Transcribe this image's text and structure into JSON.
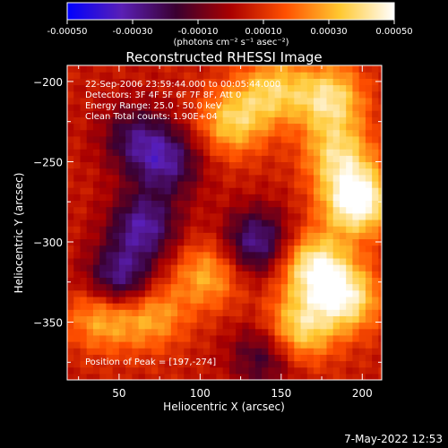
{
  "chart_data": {
    "type": "heatmap",
    "title": "Reconstructed RHESSI Image",
    "xlabel": "Heliocentric X (arcsec)",
    "ylabel": "Heliocentric Y (arcsec)",
    "xlim": [
      18,
      212
    ],
    "ylim": [
      -386,
      -190
    ],
    "x_ticks": [
      50,
      100,
      150,
      200
    ],
    "y_ticks": [
      -200,
      -250,
      -300,
      -350
    ],
    "colorbar": {
      "range": [
        -0.0005,
        0.0005
      ],
      "ticks": [
        "-0.00050",
        "-0.00030",
        "-0.00010",
        "0.00010",
        "0.00030",
        "0.00050"
      ],
      "units_label": "(photons cm⁻² s⁻¹ asec⁻²)",
      "colors": [
        "#0000ff",
        "#5a1fb5",
        "#3a0030",
        "#aa0000",
        "#ff5000",
        "#ffc830",
        "#ffffff"
      ]
    },
    "annotations": [
      "22-Sep-2006 23:59:44.000 to 00:05:44.000",
      "Detectors: 3F 4F 5F 6F 7F 8F, Att 0",
      "Energy Range: 25.0 - 50.0 keV",
      "Clean    Total counts: 1.90E+04"
    ],
    "peak_label": "Position of Peak = [197,-274]",
    "peak": [
      197,
      -274
    ],
    "bright_regions": [
      {
        "x": 197,
        "y": -274,
        "value": 0.0005
      },
      {
        "x": 180,
        "y": -210,
        "value": 0.00035
      },
      {
        "x": 170,
        "y": -315,
        "value": 0.0004
      },
      {
        "x": 190,
        "y": -335,
        "value": 0.00038
      },
      {
        "x": 160,
        "y": -355,
        "value": 0.00035
      },
      {
        "x": 120,
        "y": -225,
        "value": 0.0003
      },
      {
        "x": 145,
        "y": -205,
        "value": 0.00028
      },
      {
        "x": 105,
        "y": -320,
        "value": 0.00025
      },
      {
        "x": 40,
        "y": -345,
        "value": 0.0003
      },
      {
        "x": 70,
        "y": -345,
        "value": 0.00025
      },
      {
        "x": 185,
        "y": -245,
        "value": 0.0003
      }
    ],
    "dim_regions": [
      {
        "x": 50,
        "y": -325,
        "value": -0.0004
      },
      {
        "x": 65,
        "y": -290,
        "value": -0.00035
      },
      {
        "x": 80,
        "y": -250,
        "value": -0.0003
      },
      {
        "x": 135,
        "y": -300,
        "value": -0.00035
      },
      {
        "x": 60,
        "y": -235,
        "value": -0.00025
      },
      {
        "x": 140,
        "y": -370,
        "value": -0.00025
      }
    ]
  },
  "footer": {
    "date": "7-May-2022 12:53"
  }
}
